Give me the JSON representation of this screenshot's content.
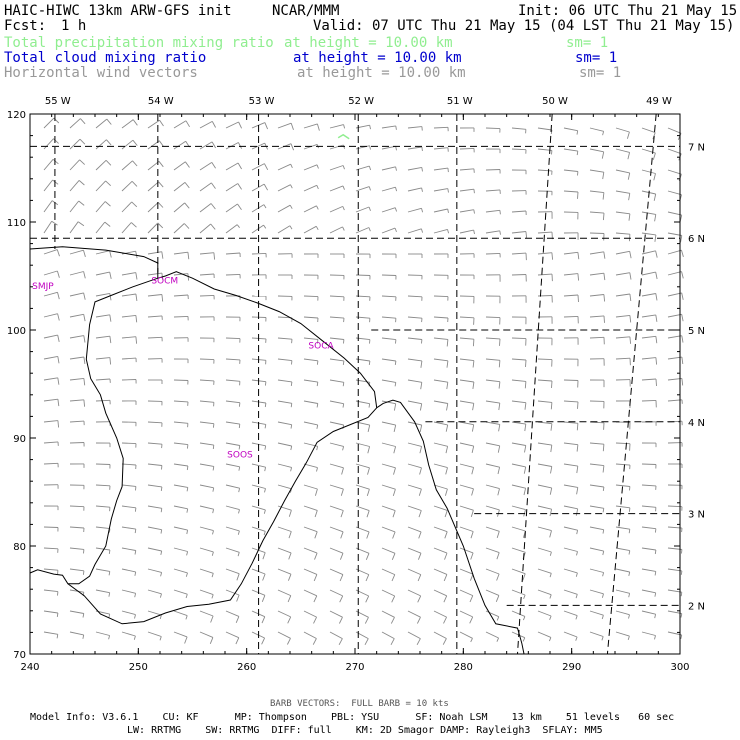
{
  "header": {
    "title": "HAIC-HIWC 13km ARW-GFS init",
    "org": "NCAR/MMM",
    "init": "Init: 06 UTC Thu 21 May 15",
    "fcst_label": "Fcst:",
    "fcst_value": "1 h",
    "valid": "Valid: 07 UTC Thu 21 May 15 (04 LST Thu 21 May 15)"
  },
  "fields": [
    {
      "name": "Total precipitation mixing ratio",
      "height": "at height = 10.00 km",
      "sm": "sm= 1",
      "color": "#90ee90"
    },
    {
      "name": "Total cloud mixing ratio",
      "height": "at height = 10.00 km",
      "sm": "sm= 1",
      "color": "#0000cd"
    },
    {
      "name": "Horizontal wind vectors",
      "height": "at height = 10.00 km",
      "sm": "sm= 1",
      "color": "#999999"
    }
  ],
  "footer": {
    "barb_note": "BARB VECTORS:  FULL BARB = 10 kts",
    "line1": "Model Info: V3.6.1    CU: KF      MP: Thompson    PBL: YSU      SF: Noah LSM    13 km    51 levels   60 sec",
    "line2": "LW: RRTMG    SW: RRTMG  DIFF: full    KM: 2D Smagor DAMP: Rayleigh3  SFLAY: MM5"
  },
  "chart_data": {
    "type": "map",
    "x_range": [
      240,
      300
    ],
    "y_range": [
      70,
      120
    ],
    "x_ticks": [
      {
        "v": 240,
        "label": "240"
      },
      {
        "v": 250,
        "label": "250"
      },
      {
        "v": 260,
        "label": "260"
      },
      {
        "v": 270,
        "label": "270"
      },
      {
        "v": 280,
        "label": "280"
      },
      {
        "v": 290,
        "label": "290"
      },
      {
        "v": 300,
        "label": "300"
      }
    ],
    "y_ticks": [
      {
        "v": 70,
        "label": "70"
      },
      {
        "v": 80,
        "label": "80"
      },
      {
        "v": 90,
        "label": "90"
      },
      {
        "v": 100,
        "label": "100"
      },
      {
        "v": 110,
        "label": "110"
      },
      {
        "v": 120,
        "label": "120"
      }
    ],
    "lon_lines": [
      {
        "label": "55 W",
        "top_x": 242.3,
        "bottom_x": 242.3,
        "y_end": 107.5
      },
      {
        "label": "54 W",
        "top_x": 251.8,
        "bottom_x": 251.8,
        "y_end": 105.3
      },
      {
        "label": "53 W",
        "top_x": 261.1,
        "bottom_x": 261.1,
        "y_end": 70
      },
      {
        "label": "52 W",
        "top_x": 270.3,
        "bottom_x": 270.3,
        "y_end": 70
      },
      {
        "label": "51 W",
        "top_x": 279.4,
        "bottom_x": 279.4,
        "y_end": 70
      },
      {
        "label": "50 W",
        "top_x": 288.2,
        "bottom_x": 285.0,
        "y_end": 70
      },
      {
        "label": "49 W",
        "top_x": 297.8,
        "bottom_x": 293.3,
        "y_end": 70
      }
    ],
    "lat_lines": [
      {
        "label": "7 N",
        "y": 117.0,
        "x_start": 240
      },
      {
        "label": "6 N",
        "y": 108.5,
        "x_start": 240
      },
      {
        "label": "5 N",
        "y": 100.0,
        "x_start": 271.5
      },
      {
        "label": "4 N",
        "y": 91.5,
        "x_start": 276.5
      },
      {
        "label": "3 N",
        "y": 83.0,
        "x_start": 281.0
      },
      {
        "label": "2 N",
        "y": 74.5,
        "x_start": 284.0
      }
    ],
    "coastline": [
      [
        [
          240,
          107.5
        ],
        [
          243,
          107.7
        ],
        [
          247,
          107.4
        ],
        [
          250.5,
          106.8
        ],
        [
          251.8,
          106.2
        ],
        [
          251.8,
          104.8
        ],
        [
          252.5,
          105.0
        ],
        [
          253.5,
          105.4
        ],
        [
          255,
          104.8
        ],
        [
          257,
          103.8
        ],
        [
          259,
          103.2
        ],
        [
          261,
          102.5
        ],
        [
          263,
          101.7
        ],
        [
          265,
          100.6
        ],
        [
          267,
          99.0
        ],
        [
          269,
          97.4
        ],
        [
          270.5,
          96.0
        ],
        [
          271.8,
          94.3
        ],
        [
          272.0,
          92.8
        ],
        [
          272.6,
          93.2
        ],
        [
          273.5,
          93.5
        ],
        [
          274.2,
          93.3
        ],
        [
          275.5,
          91.5
        ],
        [
          276.3,
          89.7
        ],
        [
          276.8,
          87.5
        ],
        [
          277.5,
          85.2
        ],
        [
          278.5,
          83.5
        ],
        [
          280,
          80.0
        ],
        [
          281,
          77.0
        ],
        [
          282,
          74.5
        ],
        [
          283,
          72.8
        ],
        [
          285,
          72.4
        ],
        [
          285.4,
          71.0
        ],
        [
          285.6,
          70
        ]
      ],
      [
        [
          272.0,
          92.8
        ],
        [
          271.2,
          91.9
        ],
        [
          268.0,
          90.6
        ],
        [
          266.5,
          89.6
        ],
        [
          265.5,
          87.7
        ],
        [
          264.5,
          86.0
        ],
        [
          263.5,
          84.2
        ],
        [
          262.5,
          82.3
        ],
        [
          261.5,
          80.5
        ],
        [
          260.5,
          78.4
        ],
        [
          259.5,
          76.5
        ],
        [
          258.5,
          75.0
        ],
        [
          256.5,
          74.6
        ],
        [
          254.5,
          74.4
        ],
        [
          252.5,
          73.8
        ],
        [
          250.5,
          73.0
        ],
        [
          248.5,
          72.8
        ],
        [
          246.5,
          73.7
        ],
        [
          245.0,
          75.4
        ],
        [
          243.5,
          76.5
        ],
        [
          243.0,
          77.3
        ],
        [
          242.2,
          77.4
        ],
        [
          240.7,
          77.8
        ],
        [
          240,
          77.5
        ]
      ],
      [
        [
          251.8,
          104.8
        ],
        [
          249.5,
          104.0
        ],
        [
          247.5,
          103.2
        ],
        [
          246.0,
          102.6
        ],
        [
          245.5,
          100.5
        ],
        [
          245.2,
          97.3
        ],
        [
          245.6,
          95.5
        ],
        [
          246.5,
          94.0
        ],
        [
          247.0,
          92.3
        ],
        [
          248.0,
          90.0
        ],
        [
          248.6,
          88.1
        ],
        [
          248.5,
          85.5
        ],
        [
          248.0,
          84.2
        ],
        [
          247.5,
          82.5
        ],
        [
          247.0,
          80.0
        ],
        [
          246.0,
          78.3
        ],
        [
          245.5,
          77.2
        ],
        [
          244.5,
          76.5
        ],
        [
          243.5,
          76.5
        ]
      ]
    ],
    "stations": [
      {
        "label": "SMJP",
        "x": 240.2,
        "y": 103.8
      },
      {
        "label": "SOCM",
        "x": 251.2,
        "y": 104.3
      },
      {
        "label": "SOCA",
        "x": 265.7,
        "y": 98.3
      },
      {
        "label": "SOOS",
        "x": 258.2,
        "y": 88.2
      }
    ],
    "precip_marks": [
      {
        "x": 269.0,
        "y": 117.8
      }
    ],
    "wind_speed_range_kts": [
      5,
      15
    ]
  }
}
